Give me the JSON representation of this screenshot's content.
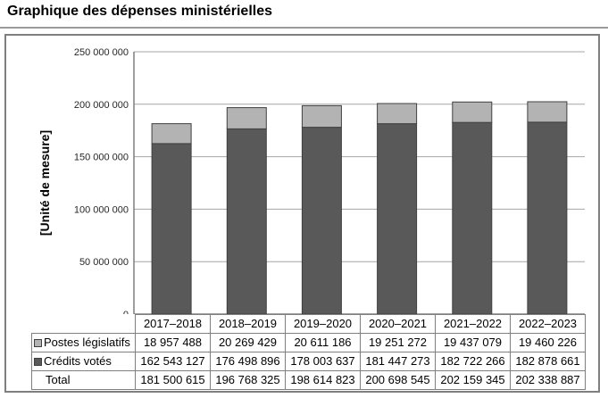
{
  "title": "Graphique des dépenses ministérielles",
  "chart_data": {
    "type": "bar",
    "stacked": true,
    "title": "Graphique des dépenses ministérielles",
    "ylabel": "[Unité de mesure]",
    "xlabel": "",
    "ylim": [
      0,
      250000000
    ],
    "grid": true,
    "legend_position": "table-left",
    "categories": [
      "2017–2018",
      "2018–2019",
      "2019–2020",
      "2020–2021",
      "2021–2022",
      "2022–2023"
    ],
    "series": [
      {
        "name": "Crédits votés",
        "color": "#595959",
        "border": "#404040",
        "values": [
          162543127,
          176498896,
          178003637,
          181447273,
          182722266,
          182878661
        ]
      },
      {
        "name": "Postes législatifs",
        "color": "#b3b3b3",
        "border": "#404040",
        "values": [
          18957488,
          20269429,
          20611186,
          19251272,
          19437079,
          19460226
        ]
      }
    ],
    "totals": [
      181500615,
      196768325,
      198614823,
      200698545,
      202159345,
      202338887
    ],
    "yticks": [
      {
        "value": 0,
        "label": "0"
      },
      {
        "value": 50000000,
        "label": "50 000 000"
      },
      {
        "value": 100000000,
        "label": "100 000 000"
      },
      {
        "value": 150000000,
        "label": "150 000 000"
      },
      {
        "value": 200000000,
        "label": "200 000 000"
      },
      {
        "value": 250000000,
        "label": "250 000 000"
      }
    ],
    "colors": {
      "grid": "#a6a6a6",
      "axis": "#7f7f7f"
    }
  },
  "table": {
    "columns": [
      "2017–2018",
      "2018–2019",
      "2019–2020",
      "2020–2021",
      "2021–2022",
      "2022–2023"
    ],
    "rows": [
      {
        "label": "Postes législatifs",
        "swatch": "#b3b3b3",
        "values": [
          "18 957 488",
          "20 269 429",
          "20 611 186",
          "19 251 272",
          "19 437 079",
          "19 460 226"
        ]
      },
      {
        "label": "Crédits votés",
        "swatch": "#595959",
        "values": [
          "162 543 127",
          "176 498 896",
          "178 003 637",
          "181 447 273",
          "182 722 266",
          "182 878 661"
        ]
      },
      {
        "label": "Total",
        "swatch": null,
        "values": [
          "181 500 615",
          "196 768 325",
          "198 614 823",
          "200 698 545",
          "202 159 345",
          "202 338 887"
        ]
      }
    ]
  }
}
